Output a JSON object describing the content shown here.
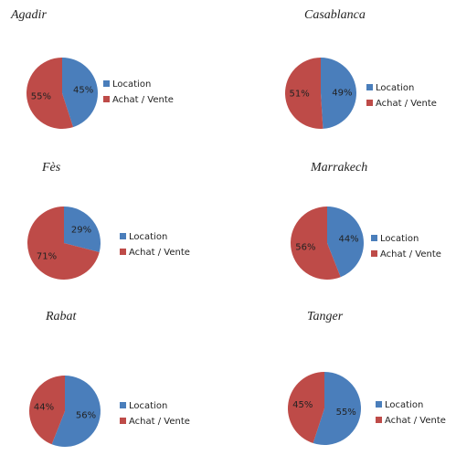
{
  "chart_data": [
    {
      "type": "pie",
      "title": "Agadir",
      "categories": [
        "Location",
        "Achat / Vente"
      ],
      "values": [
        45,
        55
      ],
      "value_labels": [
        "45%",
        "55%"
      ],
      "colors": [
        "#4a7ebb",
        "#be4b48"
      ]
    },
    {
      "type": "pie",
      "title": "Casablanca",
      "categories": [
        "Location",
        "Achat / Vente"
      ],
      "values": [
        49,
        51
      ],
      "value_labels": [
        "49%",
        "51%"
      ],
      "colors": [
        "#4a7ebb",
        "#be4b48"
      ]
    },
    {
      "type": "pie",
      "title": "Fès",
      "categories": [
        "Location",
        "Achat / Vente"
      ],
      "values": [
        29,
        71
      ],
      "value_labels": [
        "29%",
        "71%"
      ],
      "colors": [
        "#4a7ebb",
        "#be4b48"
      ]
    },
    {
      "type": "pie",
      "title": "Marrakech",
      "categories": [
        "Location",
        "Achat / Vente"
      ],
      "values": [
        44,
        56
      ],
      "value_labels": [
        "44%",
        "56%"
      ],
      "colors": [
        "#4a7ebb",
        "#be4b48"
      ]
    },
    {
      "type": "pie",
      "title": "Rabat",
      "categories": [
        "Location",
        "Achat / Vente"
      ],
      "values": [
        56,
        44
      ],
      "value_labels": [
        "56%",
        "44%"
      ],
      "colors": [
        "#4a7ebb",
        "#be4b48"
      ]
    },
    {
      "type": "pie",
      "title": "Tanger",
      "categories": [
        "Location",
        "Achat / Vente"
      ],
      "values": [
        55,
        45
      ],
      "value_labels": [
        "55%",
        "45%"
      ],
      "colors": [
        "#4a7ebb",
        "#be4b48"
      ]
    }
  ]
}
